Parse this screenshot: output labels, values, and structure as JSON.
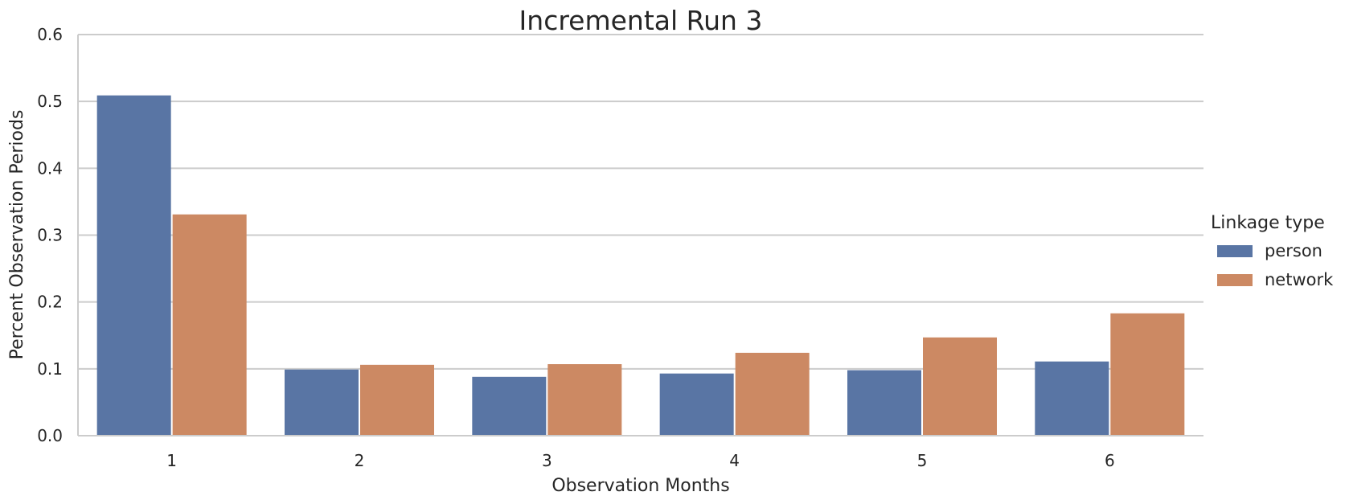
{
  "chart_data": {
    "type": "bar",
    "title": "Incremental Run 3",
    "xlabel": "Observation Months",
    "ylabel": "Percent Observation Periods",
    "categories": [
      "1",
      "2",
      "3",
      "4",
      "5",
      "6"
    ],
    "ylim": [
      0,
      0.6
    ],
    "yticks": [
      "0.0",
      "0.1",
      "0.2",
      "0.3",
      "0.4",
      "0.5",
      "0.6"
    ],
    "grid": "horizontal",
    "legend": {
      "title": "Linkage type",
      "placement": "right"
    },
    "series": [
      {
        "name": "person",
        "color": "#5975a4",
        "values": [
          0.509,
          0.099,
          0.088,
          0.093,
          0.098,
          0.111
        ]
      },
      {
        "name": "network",
        "color": "#cc8963",
        "values": [
          0.331,
          0.106,
          0.107,
          0.124,
          0.147,
          0.183
        ]
      }
    ]
  }
}
